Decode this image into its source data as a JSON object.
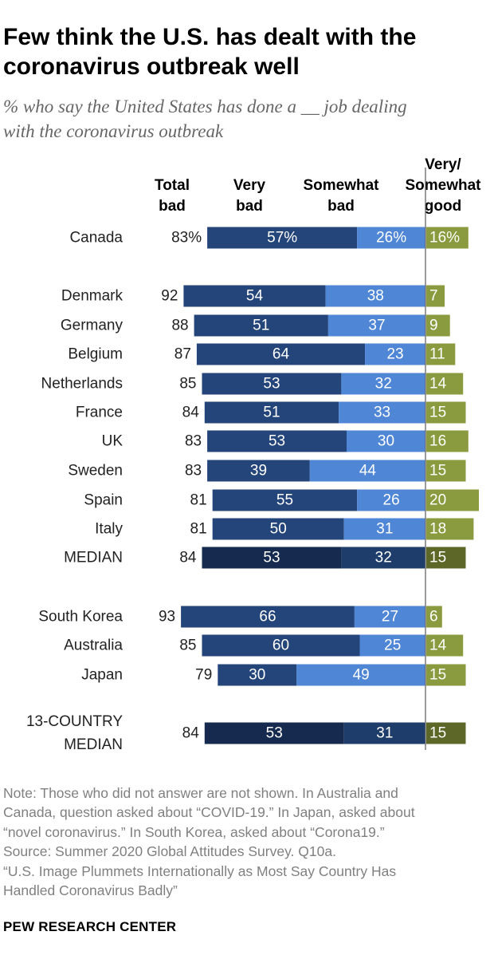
{
  "title_lines": [
    "Few think the U.S. has dealt with the",
    "coronavirus outbreak well"
  ],
  "subtitle_lines": [
    "% who say the United States has done a __ job dealing",
    "with the coronavirus outbreak"
  ],
  "chart_data": {
    "type": "bar",
    "orientation": "horizontal-diverging",
    "headers": [
      {
        "key": "total_bad",
        "lines": [
          "Total",
          "bad"
        ]
      },
      {
        "key": "very_bad",
        "lines": [
          "Very",
          "bad"
        ]
      },
      {
        "key": "somewhat_bad",
        "lines": [
          "Somewhat",
          "bad"
        ]
      },
      {
        "key": "good",
        "lines": [
          "Very/",
          "Somewhat",
          "good"
        ]
      }
    ],
    "series": [
      {
        "name": "Very bad",
        "color": "#24457a",
        "median_color": "#162a4f"
      },
      {
        "name": "Somewhat bad",
        "color": "#4f87d6",
        "median_color": "#1e3d6b"
      },
      {
        "name": "Very/Somewhat good",
        "color": "#8a9a3e",
        "median_color": "#5d6828"
      }
    ],
    "rows": [
      {
        "label": [
          "Canada"
        ],
        "total": 83,
        "very_bad": 57,
        "somewhat_bad": 26,
        "good": 16,
        "total_label": "83%",
        "very_bad_label": "57%",
        "somewhat_bad_label": "26%",
        "good_label": "16%",
        "median": false
      },
      {
        "label": [
          "Denmark"
        ],
        "total": 92,
        "very_bad": 54,
        "somewhat_bad": 38,
        "good": 7,
        "total_label": "92",
        "very_bad_label": "54",
        "somewhat_bad_label": "38",
        "good_label": "7",
        "median": false
      },
      {
        "label": [
          "Germany"
        ],
        "total": 88,
        "very_bad": 51,
        "somewhat_bad": 37,
        "good": 9,
        "total_label": "88",
        "very_bad_label": "51",
        "somewhat_bad_label": "37",
        "good_label": "9",
        "median": false
      },
      {
        "label": [
          "Belgium"
        ],
        "total": 87,
        "very_bad": 64,
        "somewhat_bad": 23,
        "good": 11,
        "total_label": "87",
        "very_bad_label": "64",
        "somewhat_bad_label": "23",
        "good_label": "11",
        "median": false
      },
      {
        "label": [
          "Netherlands"
        ],
        "total": 85,
        "very_bad": 53,
        "somewhat_bad": 32,
        "good": 14,
        "total_label": "85",
        "very_bad_label": "53",
        "somewhat_bad_label": "32",
        "good_label": "14",
        "median": false
      },
      {
        "label": [
          "France"
        ],
        "total": 84,
        "very_bad": 51,
        "somewhat_bad": 33,
        "good": 15,
        "total_label": "84",
        "very_bad_label": "51",
        "somewhat_bad_label": "33",
        "good_label": "15",
        "median": false
      },
      {
        "label": [
          "UK"
        ],
        "total": 83,
        "very_bad": 53,
        "somewhat_bad": 30,
        "good": 16,
        "total_label": "83",
        "very_bad_label": "53",
        "somewhat_bad_label": "30",
        "good_label": "16",
        "median": false
      },
      {
        "label": [
          "Sweden"
        ],
        "total": 83,
        "very_bad": 39,
        "somewhat_bad": 44,
        "good": 15,
        "total_label": "83",
        "very_bad_label": "39",
        "somewhat_bad_label": "44",
        "good_label": "15",
        "median": false
      },
      {
        "label": [
          "Spain"
        ],
        "total": 81,
        "very_bad": 55,
        "somewhat_bad": 26,
        "good": 20,
        "total_label": "81",
        "very_bad_label": "55",
        "somewhat_bad_label": "26",
        "good_label": "20",
        "median": false
      },
      {
        "label": [
          "Italy"
        ],
        "total": 81,
        "very_bad": 50,
        "somewhat_bad": 31,
        "good": 18,
        "total_label": "81",
        "very_bad_label": "50",
        "somewhat_bad_label": "31",
        "good_label": "18",
        "median": false
      },
      {
        "label": [
          "MEDIAN"
        ],
        "total": 84,
        "very_bad": 53,
        "somewhat_bad": 32,
        "good": 15,
        "total_label": "84",
        "very_bad_label": "53",
        "somewhat_bad_label": "32",
        "good_label": "15",
        "median": true
      },
      {
        "label": [
          "South Korea"
        ],
        "total": 93,
        "very_bad": 66,
        "somewhat_bad": 27,
        "good": 6,
        "total_label": "93",
        "very_bad_label": "66",
        "somewhat_bad_label": "27",
        "good_label": "6",
        "median": false
      },
      {
        "label": [
          "Australia"
        ],
        "total": 85,
        "very_bad": 60,
        "somewhat_bad": 25,
        "good": 14,
        "total_label": "85",
        "very_bad_label": "60",
        "somewhat_bad_label": "25",
        "good_label": "14",
        "median": false
      },
      {
        "label": [
          "Japan"
        ],
        "total": 79,
        "very_bad": 30,
        "somewhat_bad": 49,
        "good": 15,
        "total_label": "79",
        "very_bad_label": "30",
        "somewhat_bad_label": "49",
        "good_label": "15",
        "median": false
      },
      {
        "label": [
          "13-COUNTRY",
          "MEDIAN"
        ],
        "total": 84,
        "very_bad": 53,
        "somewhat_bad": 31,
        "good": 15,
        "total_label": "84",
        "very_bad_label": "53",
        "somewhat_bad_label": "31",
        "good_label": "15",
        "median": true
      }
    ]
  },
  "notes": [
    "Note: Those who did not answer are not shown. In Australia and",
    "Canada, question asked about “COVID-19.” In Japan, asked about",
    "“novel coronavirus.” In South Korea, asked about “Corona19.”",
    "Source: Summer 2020 Global Attitudes Survey. Q10a.",
    "“U.S. Image Plummets Internationally as Most Say Country Has",
    "Handled Coronavirus Badly”"
  ],
  "brand": "PEW RESEARCH CENTER"
}
